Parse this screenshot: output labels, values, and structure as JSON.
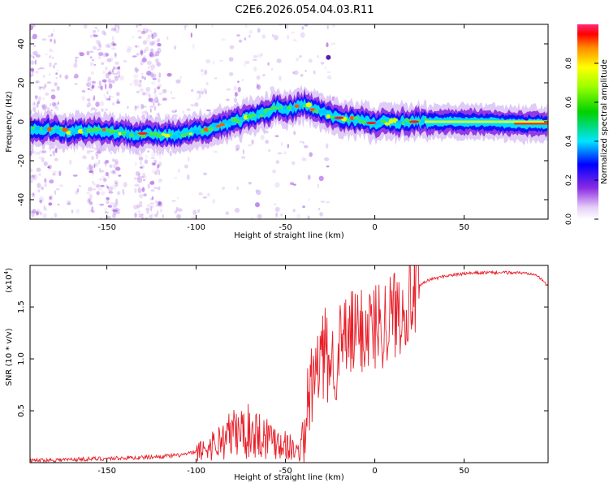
{
  "title": "C2E6.2026.054.04.03.R11",
  "chart_data": [
    {
      "type": "heatmap",
      "xlabel": "Height of straight line (km)",
      "ylabel": "Frequency (Hz)",
      "xlim": [
        -193,
        97
      ],
      "ylim": [
        -50,
        50
      ],
      "xticks": [
        -150,
        -100,
        -50,
        0,
        50
      ],
      "yticks": [
        -40,
        -20,
        0,
        20,
        40
      ],
      "ridge": {
        "x": [
          -193,
          -180,
          -170,
          -160,
          -150,
          -140,
          -130,
          -120,
          -110,
          -100,
          -90,
          -80,
          -70,
          -60,
          -55,
          -50,
          -45,
          -40,
          -35,
          -30,
          -25,
          -20,
          -10,
          0,
          10,
          20,
          40,
          60,
          80,
          97
        ],
        "y": [
          -4,
          -4,
          -5,
          -4,
          -5,
          -6,
          -6,
          -7,
          -7,
          -5,
          -3,
          0,
          2,
          5,
          8,
          6,
          7,
          9,
          7,
          5,
          3,
          2,
          1,
          -1,
          0,
          0,
          0,
          0,
          -1,
          -1
        ]
      },
      "colorbar": {
        "label": "Normalized spectral amplitude",
        "range": [
          0,
          1
        ],
        "ticks": [
          "0.0",
          "0.2",
          "0.4",
          "0.6",
          "0.8"
        ]
      }
    },
    {
      "type": "line",
      "xlabel": "Height of straight line (km)",
      "ylabel": "SNR (10 * v/v)",
      "scale_label": "(x10",
      "scale_exp": "4",
      "xlim": [
        -193,
        97
      ],
      "ylim": [
        0,
        1.9
      ],
      "xticks": [
        -150,
        -100,
        -50,
        0,
        50
      ],
      "yticks": [
        "0.5",
        "1.0",
        "1.5"
      ],
      "series": [
        {
          "name": "SNR",
          "color": "#e8202a",
          "x": [
            -193,
            -170,
            -150,
            -130,
            -120,
            -110,
            -100,
            -95,
            -90,
            -85,
            -80,
            -75,
            -70,
            -65,
            -60,
            -55,
            -50,
            -45,
            -42,
            -40,
            -38,
            -35,
            -32,
            -30,
            -28,
            -25,
            -22,
            -20,
            -15,
            -10,
            -5,
            0,
            5,
            10,
            15,
            20,
            25,
            30,
            40,
            50,
            60,
            70,
            80,
            90,
            97
          ],
          "y": [
            0.02,
            0.03,
            0.04,
            0.05,
            0.06,
            0.07,
            0.1,
            0.13,
            0.18,
            0.22,
            0.28,
            0.3,
            0.3,
            0.28,
            0.25,
            0.22,
            0.18,
            0.12,
            0.1,
            0.25,
            0.5,
            0.75,
            0.9,
            1.0,
            1.05,
            0.95,
            1.0,
            1.1,
            1.2,
            1.25,
            1.3,
            1.32,
            1.36,
            1.42,
            1.5,
            1.6,
            1.7,
            1.76,
            1.8,
            1.82,
            1.83,
            1.83,
            1.83,
            1.82,
            1.7
          ]
        }
      ]
    }
  ]
}
